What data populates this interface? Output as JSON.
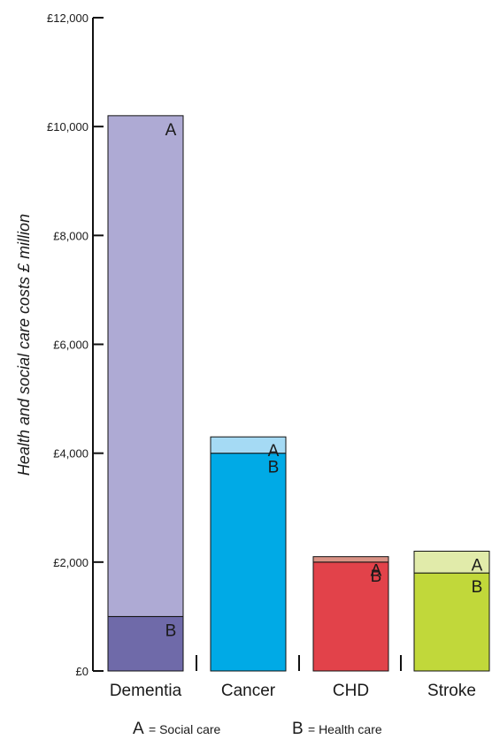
{
  "chart_data": {
    "type": "bar",
    "stacked": true,
    "ylabel": "Health and social care costs £ million",
    "xlabel": "",
    "ylim": [
      0,
      12000
    ],
    "yticks": [
      0,
      2000,
      4000,
      6000,
      8000,
      10000,
      12000
    ],
    "ytick_labels": [
      "£0",
      "£2,000",
      "£4,000",
      "£6,000",
      "£8,000",
      "£10,000",
      "£12,000"
    ],
    "categories": [
      "Dementia",
      "Cancer",
      "CHD",
      "Stroke"
    ],
    "series": [
      {
        "key": "B",
        "values": [
          1000,
          4000,
          2000,
          1800
        ],
        "colors": [
          "#6f6aa9",
          "#00aae6",
          "#e2424a",
          "#c1d83a"
        ]
      },
      {
        "key": "A",
        "values": [
          9200,
          300,
          100,
          400
        ],
        "colors": [
          "#aeaad4",
          "#a5daf4",
          "#d99184",
          "#e1ebaa"
        ]
      }
    ],
    "segment_letters": [
      "A",
      "B"
    ],
    "legend": [
      {
        "letter": "A",
        "text": "= Social care"
      },
      {
        "letter": "B",
        "text": "= Health care"
      }
    ],
    "legend_position": "bottom",
    "grid": false
  }
}
